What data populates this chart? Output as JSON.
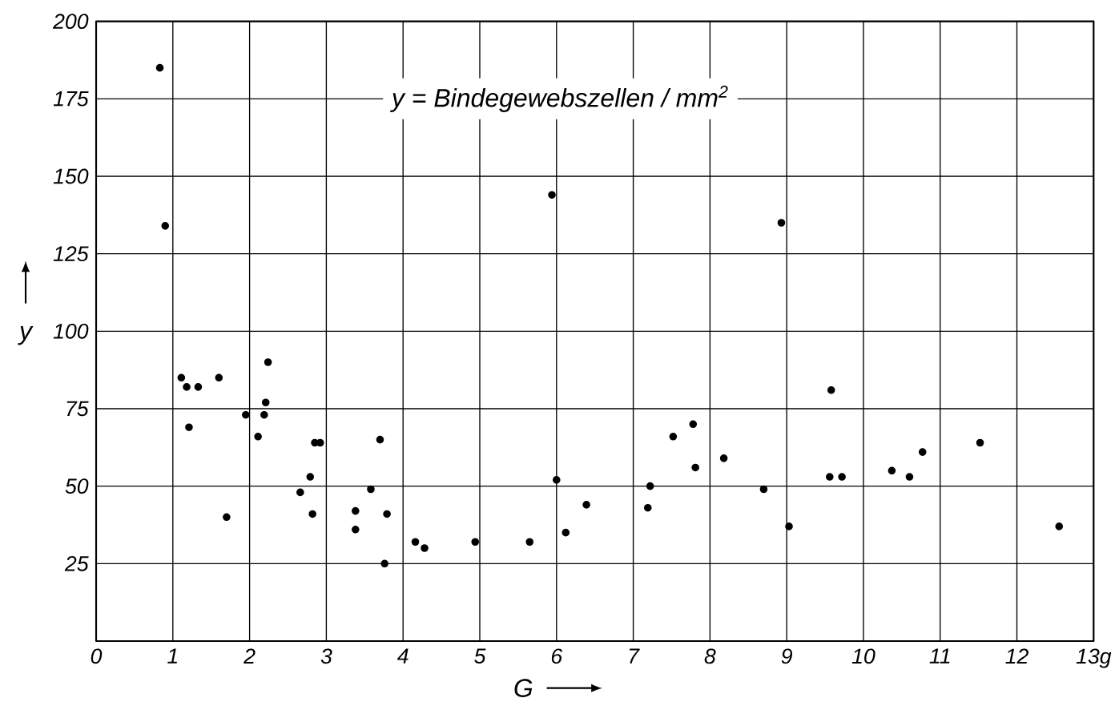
{
  "chart_data": {
    "type": "scatter",
    "xlabel": "G",
    "ylabel": "y",
    "annotations": [
      "y = Bindegewebszellen / mm$^{2}$"
    ],
    "xlim": [
      0,
      13
    ],
    "ylim": [
      0,
      200
    ],
    "xticks": [
      0,
      1,
      2,
      3,
      4,
      5,
      6,
      7,
      8,
      9,
      10,
      11,
      12,
      {
        "value": 13,
        "label": "13g"
      }
    ],
    "yticks": [
      25,
      50,
      75,
      100,
      125,
      150,
      175,
      200
    ],
    "grid": true,
    "marker": "circle",
    "series": [
      {
        "color": "#000000",
        "x": [
          0.83,
          0.9,
          1.11,
          1.18,
          1.21,
          1.33,
          1.6,
          1.7,
          1.95,
          2.11,
          2.19,
          2.21,
          2.24,
          2.66,
          2.79,
          2.82,
          2.85,
          2.92,
          3.38,
          3.38,
          3.58,
          3.7,
          3.79,
          3.76,
          4.16,
          4.28,
          4.94,
          5.65,
          5.94,
          6.0,
          6.12,
          6.39,
          7.19,
          7.22,
          7.52,
          7.78,
          7.81,
          8.18,
          8.7,
          8.93,
          9.03,
          9.58,
          9.56,
          9.72,
          10.37,
          10.6,
          10.77,
          11.52,
          12.55
        ],
        "values": [
          185,
          134,
          85,
          82,
          69,
          82,
          85,
          40,
          73,
          66,
          73,
          77,
          90,
          48,
          53,
          41,
          64,
          64,
          42,
          36,
          49,
          65,
          41,
          25,
          32,
          30,
          32,
          32,
          144,
          52,
          35,
          44,
          43,
          50,
          66,
          70,
          56,
          59,
          49,
          135,
          37,
          81,
          53,
          53,
          55,
          53,
          61,
          64,
          37
        ]
      }
    ]
  }
}
